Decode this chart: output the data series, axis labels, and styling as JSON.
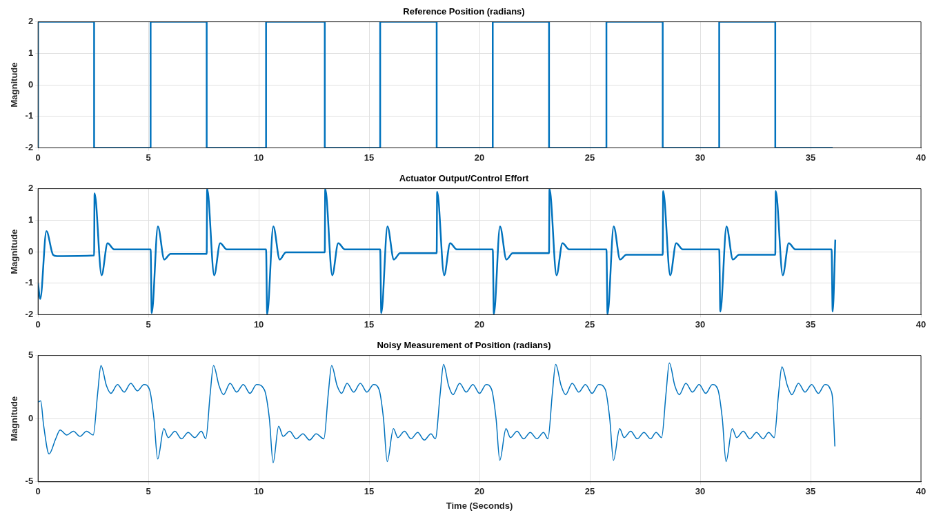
{
  "chart_data": [
    {
      "type": "step",
      "title": "Reference Position (radians)",
      "ylabel": "Magnitude",
      "color": "#0072bd",
      "marker": "none",
      "grid": true,
      "x": [
        0,
        2.54,
        5.1,
        7.64,
        10.33,
        12.99,
        15.5,
        18.06,
        20.6,
        23.15,
        25.75,
        28.3,
        30.86,
        33.4,
        35.95,
        36.0
      ],
      "values": [
        -2,
        2,
        -2,
        2,
        -2,
        2,
        -2,
        2,
        -2,
        2,
        -2,
        2,
        -2,
        2,
        -2,
        -2
      ],
      "xlim": [
        0,
        40
      ],
      "xticks": [
        0,
        5,
        10,
        15,
        20,
        25,
        30,
        35,
        40
      ],
      "ylim": [
        -2,
        2
      ],
      "yticks": [
        -2,
        -1,
        0,
        1,
        2
      ]
    },
    {
      "type": "line",
      "title": "Actuator Output/Control Effort",
      "ylabel": "Magnitude",
      "color": "#0072bd",
      "marker": "none",
      "grid": true,
      "x": [
        0,
        0.1,
        0.38,
        0.68,
        0.85,
        2.54,
        2.56,
        2.88,
        3.15,
        3.45,
        5.1,
        5.15,
        5.43,
        5.72,
        6.0,
        7.64,
        7.66,
        7.98,
        8.25,
        8.55,
        10.33,
        10.38,
        10.66,
        10.95,
        11.23,
        12.99,
        13.01,
        13.33,
        13.6,
        13.9,
        15.5,
        15.55,
        15.83,
        16.12,
        16.4,
        18.06,
        18.08,
        18.4,
        18.67,
        18.97,
        20.6,
        20.65,
        20.93,
        21.22,
        21.5,
        23.15,
        23.17,
        23.49,
        23.76,
        24.06,
        25.75,
        25.8,
        26.08,
        26.37,
        26.65,
        28.3,
        28.32,
        28.64,
        28.91,
        29.21,
        30.86,
        30.91,
        31.19,
        31.48,
        31.76,
        33.4,
        33.42,
        33.74,
        34.01,
        34.31,
        35.95,
        36.0,
        36.12
      ],
      "values": [
        -1.0,
        -1.5,
        0.65,
        -0.1,
        -0.14,
        -0.12,
        1.85,
        -0.75,
        0.27,
        0.07,
        0.07,
        -1.95,
        0.8,
        -0.25,
        -0.07,
        -0.07,
        2.0,
        -0.75,
        0.27,
        0.07,
        0.07,
        -1.98,
        0.8,
        -0.25,
        -0.02,
        -0.02,
        2.0,
        -0.75,
        0.27,
        0.07,
        0.07,
        -1.95,
        0.8,
        -0.25,
        -0.05,
        -0.05,
        1.9,
        -0.75,
        0.27,
        0.07,
        0.07,
        -1.98,
        0.8,
        -0.25,
        -0.05,
        -0.05,
        2.0,
        -0.75,
        0.27,
        0.07,
        0.07,
        -1.98,
        0.8,
        -0.25,
        -0.1,
        -0.1,
        1.92,
        -0.75,
        0.27,
        0.07,
        0.07,
        -1.9,
        0.8,
        -0.25,
        -0.1,
        -0.1,
        1.92,
        -0.75,
        0.27,
        0.07,
        0.07,
        -1.9,
        0.38
      ],
      "xlim": [
        0,
        40
      ],
      "xticks": [
        0,
        5,
        10,
        15,
        20,
        25,
        30,
        35,
        40
      ],
      "ylim": [
        -2,
        2
      ],
      "yticks": [
        -2,
        -1,
        0,
        1,
        2
      ]
    },
    {
      "type": "line",
      "title": "Noisy Measurement of Position (radians)",
      "xlabel": "Time (Seconds)",
      "ylabel": "Magnitude",
      "color": "#0072bd",
      "marker": "none",
      "grid": true,
      "x": [
        0,
        0.12,
        0.25,
        0.5,
        0.8,
        1.0,
        1.3,
        1.6,
        1.9,
        2.2,
        2.5,
        2.7,
        2.85,
        3.1,
        3.3,
        3.6,
        3.9,
        4.2,
        4.5,
        4.8,
        5.05,
        5.25,
        5.42,
        5.7,
        5.9,
        6.2,
        6.5,
        6.8,
        7.1,
        7.4,
        7.6,
        7.8,
        7.95,
        8.2,
        8.4,
        8.7,
        9.0,
        9.3,
        9.6,
        9.9,
        10.25,
        10.48,
        10.65,
        10.9,
        11.1,
        11.4,
        11.7,
        12.0,
        12.3,
        12.6,
        12.95,
        13.15,
        13.3,
        13.55,
        13.75,
        14.0,
        14.3,
        14.6,
        14.9,
        15.2,
        15.45,
        15.65,
        15.82,
        16.1,
        16.3,
        16.6,
        16.9,
        17.2,
        17.5,
        17.8,
        18.0,
        18.22,
        18.37,
        18.6,
        18.8,
        19.1,
        19.4,
        19.7,
        20.0,
        20.3,
        20.55,
        20.75,
        20.92,
        21.2,
        21.4,
        21.7,
        22.0,
        22.3,
        22.6,
        22.9,
        23.1,
        23.3,
        23.45,
        23.7,
        23.9,
        24.2,
        24.5,
        24.8,
        25.1,
        25.4,
        25.7,
        25.9,
        26.07,
        26.35,
        26.55,
        26.85,
        27.15,
        27.45,
        27.75,
        28.0,
        28.25,
        28.45,
        28.6,
        28.85,
        29.05,
        29.35,
        29.65,
        29.95,
        30.25,
        30.55,
        30.8,
        31.0,
        31.17,
        31.45,
        31.65,
        31.95,
        32.25,
        32.55,
        32.85,
        33.1,
        33.35,
        33.55,
        33.7,
        33.95,
        34.15,
        34.45,
        34.75,
        35.05,
        35.35,
        35.65,
        35.9,
        36.0,
        36.1
      ],
      "values": [
        1.3,
        1.4,
        -0.5,
        -2.8,
        -1.6,
        -0.9,
        -1.3,
        -1.0,
        -1.4,
        -1.0,
        -1.3,
        2.0,
        4.2,
        2.6,
        2.0,
        2.7,
        2.1,
        2.8,
        2.2,
        2.7,
        2.3,
        0.0,
        -3.2,
        -0.8,
        -1.5,
        -1.0,
        -1.6,
        -1.1,
        -1.5,
        -1.0,
        -1.6,
        2.0,
        4.2,
        2.6,
        1.9,
        2.8,
        2.1,
        2.7,
        2.0,
        2.7,
        2.3,
        0.0,
        -3.5,
        -0.6,
        -1.4,
        -1.0,
        -1.6,
        -1.2,
        -1.7,
        -1.2,
        -1.6,
        2.0,
        4.2,
        2.6,
        2.0,
        2.8,
        2.1,
        2.8,
        2.1,
        2.7,
        2.3,
        0.0,
        -3.4,
        -0.8,
        -1.5,
        -1.0,
        -1.6,
        -1.1,
        -1.7,
        -1.2,
        -1.6,
        2.0,
        4.3,
        2.6,
        1.9,
        2.8,
        2.1,
        2.7,
        2.0,
        2.7,
        2.3,
        0.0,
        -3.3,
        -0.8,
        -1.5,
        -1.0,
        -1.6,
        -1.1,
        -1.6,
        -1.1,
        -1.6,
        2.0,
        4.3,
        2.6,
        1.9,
        2.8,
        2.1,
        2.7,
        2.0,
        2.7,
        2.3,
        0.0,
        -3.3,
        -0.8,
        -1.5,
        -1.0,
        -1.6,
        -1.1,
        -1.6,
        -1.1,
        -1.5,
        2.0,
        4.4,
        2.6,
        1.9,
        2.8,
        2.1,
        2.7,
        2.0,
        2.7,
        2.3,
        0.0,
        -3.4,
        -0.8,
        -1.5,
        -1.0,
        -1.6,
        -1.1,
        -1.6,
        -1.1,
        -1.5,
        2.0,
        4.1,
        2.6,
        1.9,
        2.8,
        2.1,
        2.7,
        2.0,
        2.7,
        2.3,
        1.5,
        -2.2
      ],
      "xlim": [
        0,
        40
      ],
      "xticks": [
        0,
        5,
        10,
        15,
        20,
        25,
        30,
        35,
        40
      ],
      "ylim": [
        -5,
        5
      ],
      "yticks": [
        -5,
        0,
        5
      ]
    }
  ]
}
